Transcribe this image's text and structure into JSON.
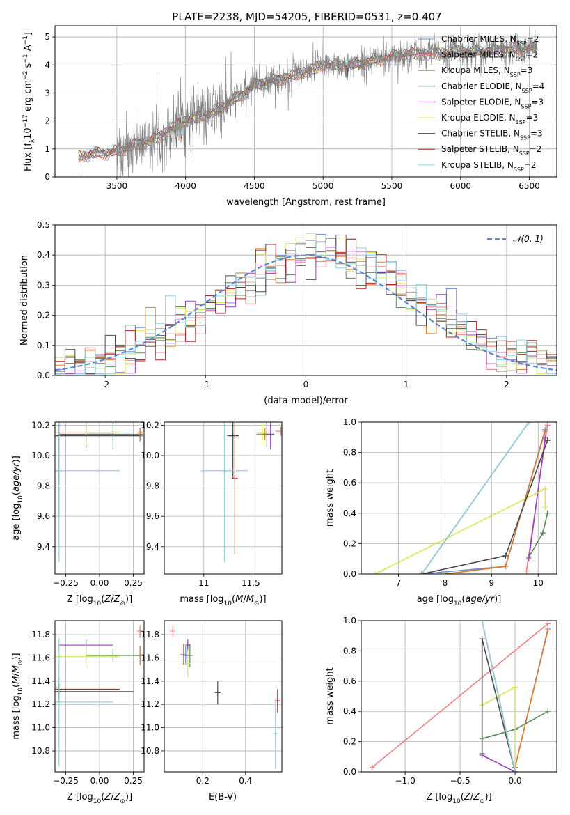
{
  "title": "PLATE=2238, MJD=54205, FIBERID=0531, z=0.407",
  "colors": {
    "Chabrier MILES": "#6b8dd6",
    "Salpeter MILES": "#f08080",
    "Kroupa MILES": "#e07b2a",
    "Chabrier ELODIE": "#5b8a5b",
    "Salpeter ELODIE": "#9a3fc0",
    "Kroupa ELODIE": "#d9e85a",
    "Chabrier STELIB": "#4a4a4a",
    "Salpeter STELIB": "#b22222",
    "Kroupa STELIB": "#8fd3e0",
    "data": "#808080",
    "normal": "#5a87d1"
  },
  "chart_data": [
    {
      "id": "spectrum",
      "type": "line",
      "title": "PLATE=2238, MJD=54205, FIBERID=0531, z=0.407",
      "xlabel": "wavelength [Angstrom, rest frame]",
      "ylabel": "Flux [f",
      "xlim": [
        3050,
        6700
      ],
      "ylim": [
        0,
        5.4
      ],
      "xticks": [
        3500,
        4000,
        4500,
        5000,
        5500,
        6000,
        6500
      ],
      "yticks": [
        0,
        1,
        2,
        3,
        4,
        5
      ],
      "legend_position": "top-right",
      "legend": [
        {
          "prefix": "Chabrier MILES, N",
          "nssp": 2
        },
        {
          "prefix": "Salpeter MILES, N",
          "nssp": 2
        },
        {
          "prefix": "Kroupa MILES, N",
          "nssp": 3
        },
        {
          "prefix": "Chabrier ELODIE, N",
          "nssp": 4
        },
        {
          "prefix": "Salpeter ELODIE, N",
          "nssp": 3
        },
        {
          "prefix": "Kroupa ELODIE, N",
          "nssp": 3
        },
        {
          "prefix": "Chabrier STELIB, N",
          "nssp": 3
        },
        {
          "prefix": "Salpeter STELIB, N",
          "nssp": 2
        },
        {
          "prefix": "Kroupa STELIB, N",
          "nssp": 2
        }
      ],
      "legend_sub": "SSP",
      "legend_eq": "=",
      "data_range": [
        3220,
        6560
      ],
      "model_anchor_x": [
        3220,
        3280,
        3500,
        3600,
        3800,
        3950,
        4000,
        4200,
        4400,
        4500,
        4700,
        4900,
        5000,
        5200,
        5400,
        5600,
        5800,
        6000,
        6200,
        6500
      ],
      "model_anchor_y": [
        0.7,
        0.8,
        0.9,
        1.1,
        1.4,
        1.9,
        2.0,
        2.3,
        2.9,
        3.3,
        3.5,
        3.8,
        4.0,
        4.0,
        4.2,
        4.4,
        4.4,
        4.5,
        4.5,
        4.6
      ]
    },
    {
      "id": "residuals",
      "type": "line",
      "xlabel": "(data-model)/error",
      "ylabel": "Normed distribution",
      "xlim": [
        -2.5,
        2.5
      ],
      "ylim": [
        0,
        0.5
      ],
      "xticks": [
        -2,
        -1,
        0,
        1,
        2
      ],
      "yticks": [
        0.0,
        0.1,
        0.2,
        0.3,
        0.4,
        0.5
      ],
      "legend_position": "top-right",
      "legend_label": "𝒩(0, 1)",
      "bins": 50
    },
    {
      "id": "age_vs_Z",
      "type": "scatter",
      "xlabel": "Z [log",
      "ylabel": "age  [log",
      "xlim": [
        -0.33,
        0.33
      ],
      "ylim": [
        9.22,
        10.22
      ],
      "xticks": [
        -0.25,
        0.0,
        0.25
      ],
      "xticklabels": [
        "−0.25",
        "0.00",
        "0.25"
      ],
      "yticks": [
        9.4,
        9.6,
        9.8,
        10.0,
        10.2
      ],
      "points": [
        {
          "model": "Chabrier MILES",
          "x": 0.3,
          "y": 10.13,
          "xerr": 0.02,
          "yerr": 0.04
        },
        {
          "model": "Salpeter MILES",
          "x": 0.3,
          "y": 10.15,
          "xerr": 0.02,
          "yerr": 0.03
        },
        {
          "model": "Kroupa MILES",
          "x": 0.3,
          "y": 10.14,
          "xerr": 0.02,
          "yerr": 0.04
        },
        {
          "model": "Chabrier ELODIE",
          "x": 0.1,
          "y": 10.14,
          "xerr": 0.2,
          "yerr": 0.1
        },
        {
          "model": "Salpeter ELODIE",
          "x": -0.1,
          "y": 10.14,
          "xerr": 0.2,
          "yerr": 0.09
        },
        {
          "model": "Kroupa ELODIE",
          "x": -0.1,
          "y": 10.15,
          "xerr": 0.25,
          "yerr": 0.08
        },
        {
          "model": "Chabrier STELIB",
          "x": -0.3,
          "y": 10.13,
          "xerr": 0.6,
          "yerr": 0.3
        },
        {
          "model": "Salpeter STELIB",
          "x": -0.3,
          "y": 9.9,
          "xerr": 0.0,
          "yerr": 0.3
        },
        {
          "model": "Kroupa STELIB",
          "x": -0.3,
          "y": 9.9,
          "xerr": 0.45,
          "yerr": 0.6
        }
      ]
    },
    {
      "id": "age_vs_mass",
      "type": "scatter",
      "xlabel": "mass [log",
      "xlim": [
        10.58,
        11.83
      ],
      "ylim": [
        9.22,
        10.22
      ],
      "xticks": [
        11.0,
        11.5
      ],
      "yticks": [
        9.4,
        9.6,
        9.8,
        10.0,
        10.2
      ],
      "points": [
        {
          "model": "Chabrier MILES",
          "x": 11.62,
          "y": 10.14,
          "xerr": 0.06,
          "yerr": 0.03
        },
        {
          "model": "Salpeter MILES",
          "x": 11.82,
          "y": 10.16,
          "xerr": 0.06,
          "yerr": 0.03
        },
        {
          "model": "Kroupa MILES",
          "x": 11.65,
          "y": 10.14,
          "xerr": 0.06,
          "yerr": 0.04
        },
        {
          "model": "Chabrier ELODIE",
          "x": 11.67,
          "y": 10.14,
          "xerr": 0.05,
          "yerr": 0.08
        },
        {
          "model": "Salpeter ELODIE",
          "x": 11.71,
          "y": 10.14,
          "xerr": 0.04,
          "yerr": 0.1
        },
        {
          "model": "Kroupa ELODIE",
          "x": 11.62,
          "y": 10.15,
          "xerr": 0.06,
          "yerr": 0.08
        },
        {
          "model": "Chabrier STELIB",
          "x": 11.31,
          "y": 10.13,
          "xerr": 0.06,
          "yerr": 0.28
        },
        {
          "model": "Salpeter STELIB",
          "x": 11.33,
          "y": 9.85,
          "xerr": 0.0,
          "yerr": 0.5
        },
        {
          "model": "Kroupa STELIB",
          "x": 11.22,
          "y": 9.9,
          "xerr": 0.25,
          "yerr": 0.6
        }
      ]
    },
    {
      "id": "massweight_vs_age",
      "type": "line",
      "xlabel": "age  [log",
      "ylabel": "mass weight",
      "xlim": [
        6.2,
        10.4
      ],
      "ylim": [
        0,
        1.0
      ],
      "xticks": [
        7,
        8,
        9,
        10
      ],
      "yticks": [
        0.0,
        0.2,
        0.4,
        0.6,
        0.8,
        1.0
      ],
      "series": [
        {
          "model": "Chabrier MILES",
          "x": [
            7.5,
            9.3,
            10.15
          ],
          "y": [
            0.0,
            0.05,
            0.95
          ]
        },
        {
          "model": "Salpeter MILES",
          "x": [
            9.75,
            10.2
          ],
          "y": [
            0.02,
            0.98
          ]
        },
        {
          "model": "Kroupa MILES",
          "x": [
            8.0,
            9.3,
            10.15
          ],
          "y": [
            0.0,
            0.05,
            0.94
          ]
        },
        {
          "model": "Chabrier ELODIE",
          "x": [
            9.8,
            10.1,
            10.2
          ],
          "y": [
            0.11,
            0.27,
            0.4
          ]
        },
        {
          "model": "Salpeter ELODIE",
          "x": [
            9.8,
            10.15
          ],
          "y": [
            0.1,
            0.9
          ]
        },
        {
          "model": "Kroupa ELODIE",
          "x": [
            6.5,
            10.15,
            10.15
          ],
          "y": [
            0.0,
            0.56,
            0.44
          ]
        },
        {
          "model": "Chabrier STELIB",
          "x": [
            7.5,
            9.3,
            10.2
          ],
          "y": [
            0.0,
            0.12,
            0.88
          ]
        },
        {
          "model": "Salpeter STELIB",
          "x": [
            7.5,
            9.8
          ],
          "y": [
            0.0,
            1.0
          ]
        },
        {
          "model": "Kroupa STELIB",
          "x": [
            7.5,
            9.8
          ],
          "y": [
            0.0,
            1.0
          ]
        }
      ]
    },
    {
      "id": "mass_vs_Z",
      "type": "scatter",
      "xlabel": "Z [log",
      "ylabel": "mass [log",
      "xlim": [
        -0.33,
        0.33
      ],
      "ylim": [
        10.62,
        11.92
      ],
      "xticks": [
        -0.25,
        0.0,
        0.25
      ],
      "xticklabels": [
        "−0.25",
        "0.00",
        "0.25"
      ],
      "yticks": [
        10.8,
        11.0,
        11.2,
        11.4,
        11.6,
        11.8
      ],
      "points": [
        {
          "model": "Chabrier MILES",
          "x": 0.3,
          "y": 11.62,
          "xerr": 0.02,
          "yerr": 0.08
        },
        {
          "model": "Salpeter MILES",
          "x": 0.3,
          "y": 11.83,
          "xerr": 0.02,
          "yerr": 0.05
        },
        {
          "model": "Kroupa MILES",
          "x": 0.3,
          "y": 11.62,
          "xerr": 0.02,
          "yerr": 0.08
        },
        {
          "model": "Chabrier ELODIE",
          "x": 0.1,
          "y": 11.62,
          "xerr": 0.2,
          "yerr": 0.06
        },
        {
          "model": "Salpeter ELODIE",
          "x": -0.1,
          "y": 11.71,
          "xerr": 0.2,
          "yerr": 0.05
        },
        {
          "model": "Kroupa ELODIE",
          "x": -0.1,
          "y": 11.61,
          "xerr": 0.25,
          "yerr": 0.09
        },
        {
          "model": "Chabrier STELIB",
          "x": -0.3,
          "y": 11.31,
          "xerr": 0.55,
          "yerr": 0.09
        },
        {
          "model": "Salpeter STELIB",
          "x": -0.3,
          "y": 11.33,
          "xerr": 0.45,
          "yerr": 0.1
        },
        {
          "model": "Kroupa STELIB",
          "x": -0.3,
          "y": 11.22,
          "xerr": 0.4,
          "yerr": 0.55
        }
      ]
    },
    {
      "id": "mass_vs_ebv",
      "type": "scatter",
      "xlabel": "E(B-V)",
      "xlim": [
        0.02,
        0.57
      ],
      "ylim": [
        10.62,
        11.92
      ],
      "xticks": [
        0.2,
        0.4
      ],
      "yticks": [
        10.8,
        11.0,
        11.2,
        11.4,
        11.6,
        11.8
      ],
      "points": [
        {
          "model": "Chabrier MILES",
          "x": 0.12,
          "y": 11.62,
          "xerr": 0.0,
          "yerr": 0.08
        },
        {
          "model": "Salpeter MILES",
          "x": 0.06,
          "y": 11.83,
          "xerr": 0.0,
          "yerr": 0.05
        },
        {
          "model": "Kroupa MILES",
          "x": 0.11,
          "y": 11.63,
          "xerr": 0.0,
          "yerr": 0.09
        },
        {
          "model": "Chabrier ELODIE",
          "x": 0.14,
          "y": 11.62,
          "xerr": 0.0,
          "yerr": 0.1
        },
        {
          "model": "Salpeter ELODIE",
          "x": 0.13,
          "y": 11.71,
          "xerr": 0.0,
          "yerr": 0.05
        },
        {
          "model": "Kroupa ELODIE",
          "x": 0.13,
          "y": 11.55,
          "xerr": 0.0,
          "yerr": 0.12
        },
        {
          "model": "Chabrier STELIB",
          "x": 0.27,
          "y": 11.3,
          "xerr": 0.0,
          "yerr": 0.1
        },
        {
          "model": "Salpeter STELIB",
          "x": 0.55,
          "y": 11.23,
          "xerr": 0.0,
          "yerr": 0.1
        },
        {
          "model": "Kroupa STELIB",
          "x": 0.54,
          "y": 10.95,
          "xerr": 0.0,
          "yerr": 0.3
        }
      ]
    },
    {
      "id": "massweight_vs_Z",
      "type": "line",
      "xlabel": "Z [log",
      "ylabel": "mass weight",
      "xlim": [
        -1.4,
        0.38
      ],
      "ylim": [
        0,
        1.0
      ],
      "xticks": [
        -1.0,
        -0.5,
        0.0
      ],
      "xticklabels": [
        "−1.0",
        "−0.5",
        "0.0"
      ],
      "yticks": [
        0.0,
        0.2,
        0.4,
        0.6,
        0.8,
        1.0
      ],
      "series": [
        {
          "model": "Chabrier MILES",
          "x": [
            0.0,
            0.3
          ],
          "y": [
            0.03,
            0.95
          ]
        },
        {
          "model": "Salpeter MILES",
          "x": [
            -1.3,
            0.3
          ],
          "y": [
            0.03,
            0.98
          ]
        },
        {
          "model": "Kroupa MILES",
          "x": [
            0.0,
            0.3
          ],
          "y": [
            0.03,
            0.94
          ]
        },
        {
          "model": "Chabrier ELODIE",
          "x": [
            -0.3,
            0.0,
            0.3
          ],
          "y": [
            0.22,
            0.28,
            0.4
          ]
        },
        {
          "model": "Salpeter ELODIE",
          "x": [
            -0.3,
            0.0
          ],
          "y": [
            0.11,
            0.0
          ]
        },
        {
          "model": "Kroupa ELODIE",
          "x": [
            -0.3,
            0.0,
            0.0
          ],
          "y": [
            0.44,
            0.56,
            0.0
          ]
        },
        {
          "model": "Chabrier STELIB",
          "x": [
            -0.3,
            -0.3,
            0.0
          ],
          "y": [
            0.12,
            0.88,
            0.0
          ]
        },
        {
          "model": "Salpeter STELIB",
          "x": [
            -0.3,
            0.0
          ],
          "y": [
            1.0,
            0.0
          ]
        },
        {
          "model": "Kroupa STELIB",
          "x": [
            -0.3,
            0.0
          ],
          "y": [
            1.0,
            0.0
          ]
        }
      ]
    }
  ]
}
